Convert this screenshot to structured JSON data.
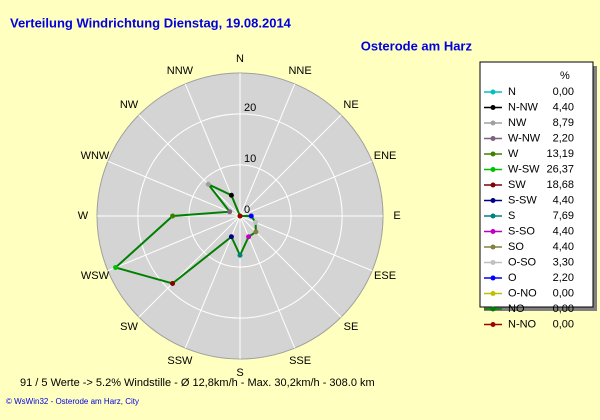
{
  "chart_data": {
    "type": "radar",
    "title": "Verteilung Windrichtung   Dienstag, 19.08.2014",
    "subtitle": "Osterode am Harz",
    "direction_labels": [
      "N",
      "NNE",
      "NE",
      "ENE",
      "E",
      "ESE",
      "SE",
      "SSE",
      "S",
      "SSW",
      "SW",
      "WSW",
      "W",
      "WNW",
      "NW",
      "NNW"
    ],
    "legend_header": "%",
    "categories": [
      "N",
      "N-NW",
      "NW",
      "W-NW",
      "W",
      "W-SW",
      "SW",
      "S-SW",
      "S",
      "S-SO",
      "SO",
      "O-SO",
      "O",
      "O-NO",
      "NO",
      "N-NO"
    ],
    "values": [
      0.0,
      4.4,
      8.79,
      2.2,
      13.19,
      26.37,
      18.68,
      4.4,
      7.69,
      4.4,
      4.4,
      3.3,
      2.2,
      0.0,
      0.0,
      0.0
    ],
    "value_labels": [
      "0,00",
      "4,40",
      "8,79",
      "2,20",
      "13,19",
      "26,37",
      "18,68",
      "4,40",
      "7,69",
      "4,40",
      "4,40",
      "3,30",
      "2,20",
      "0,00",
      "0,00",
      "0,00"
    ],
    "marker_colors": [
      "#00c0c0",
      "#000000",
      "#a0a0a0",
      "#806080",
      "#408000",
      "#00c000",
      "#800000",
      "#000080",
      "#008080",
      "#c000c0",
      "#808040",
      "#c0c0c0",
      "#0000ff",
      "#c0c000",
      "#008000",
      "#a00000"
    ],
    "line_color": "#008000",
    "rlim": [
      0,
      28
    ],
    "rticks": [
      0,
      10,
      20
    ],
    "footer": "91 / 5 Werte  -> 5.2% Windstille   -   Ø 12,8km/h  -  Max. 30,2km/h   -   308.0 km",
    "credit": "© WsWin32  -  Osterode am Harz, City"
  }
}
